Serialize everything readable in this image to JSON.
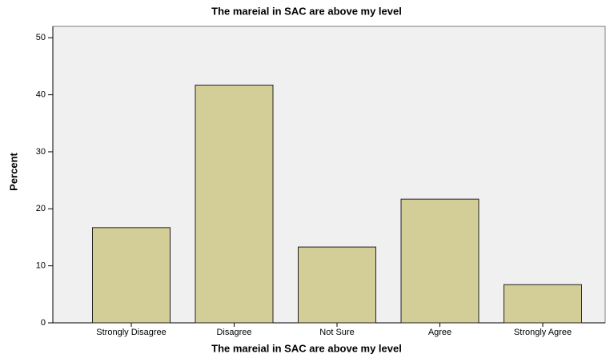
{
  "chart_data": {
    "type": "bar",
    "title": "The mareial in SAC are above my level",
    "x_label": "The mareial in SAC are above my level",
    "y_label": "Percent",
    "categories": [
      "Strongly Disagree",
      "Disagree",
      "Not Sure",
      "Agree",
      "Strongly Agree"
    ],
    "values": [
      16.7,
      41.7,
      13.3,
      21.7,
      6.7
    ],
    "color": "#d3ce97",
    "ylim": [
      0,
      52
    ],
    "yticks": [
      0,
      10,
      20,
      30,
      40,
      50
    ],
    "grid": false
  }
}
